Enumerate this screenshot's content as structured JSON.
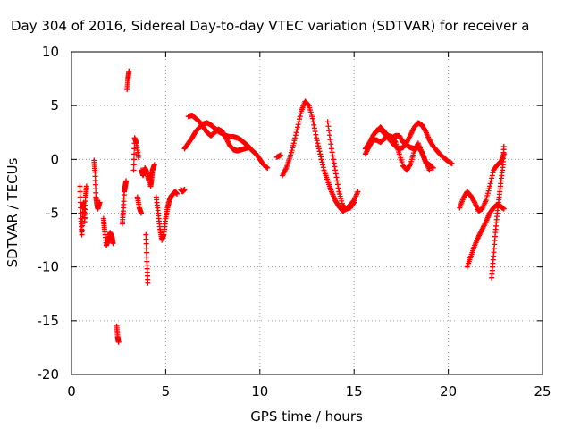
{
  "colors": {
    "series": "#ff0000",
    "grid": "#a0a0a0",
    "axis": "#000000"
  },
  "chart_data": {
    "type": "scatter",
    "title": "Day 304 of 2016, Sidereal Day-to-day VTEC variation (SDTVAR) for receiver a",
    "xlabel": "GPS time / hours",
    "ylabel": "SDTVAR / TECUs",
    "xlim": [
      0,
      25
    ],
    "ylim": [
      -20,
      10
    ],
    "grid": true,
    "marker": "plus",
    "x_ticks": [
      0,
      5,
      10,
      15,
      20,
      25
    ],
    "x_tick_labels": [
      "0",
      "5",
      "10",
      "15",
      "20",
      "25"
    ],
    "y_ticks": [
      -20,
      -15,
      -10,
      -5,
      0,
      5,
      10
    ],
    "y_tick_labels": [
      "-20",
      "-15",
      "-10",
      "-5",
      "0",
      "5",
      "10"
    ],
    "segments": [
      {
        "x": [
          0.45,
          0.5,
          0.55,
          0.6,
          0.65,
          0.7,
          0.75,
          0.8
        ],
        "y": [
          -2.5,
          -5.5,
          -7.0,
          -4.5,
          -4.0,
          -5.8,
          -3.5,
          -2.5
        ]
      },
      {
        "x": [
          1.2,
          1.25,
          1.3,
          1.35,
          1.4,
          1.5
        ],
        "y": [
          -0.1,
          -1.2,
          -3.5,
          -4.2,
          -4.6,
          -4.0
        ]
      },
      {
        "x": [
          1.7,
          1.75,
          1.85,
          1.95,
          2.05,
          2.15,
          2.2
        ],
        "y": [
          -5.5,
          -6.5,
          -8.0,
          -7.5,
          -6.8,
          -7.2,
          -7.8
        ]
      },
      {
        "x": [
          2.4,
          2.45,
          2.5
        ],
        "y": [
          -15.5,
          -16.5,
          -17.0
        ]
      },
      {
        "x": [
          2.7,
          2.75,
          2.8,
          2.85,
          2.9
        ],
        "y": [
          -6.0,
          -4.8,
          -3.0,
          -2.5,
          -2.0
        ]
      },
      {
        "x": [
          2.95,
          3.0,
          3.05
        ],
        "y": [
          6.5,
          7.5,
          8.2
        ]
      },
      {
        "x": [
          3.3,
          3.35,
          3.45,
          3.55
        ],
        "y": [
          -1.0,
          2.0,
          1.5,
          0.2
        ]
      },
      {
        "x": [
          3.5,
          3.6,
          3.7
        ],
        "y": [
          -3.5,
          -4.5,
          -5.0
        ]
      },
      {
        "x": [
          3.7,
          3.8,
          3.9,
          4.0,
          4.1,
          4.2
        ],
        "y": [
          -1.0,
          -1.5,
          -0.8,
          -1.2,
          -2.0,
          -1.2
        ]
      },
      {
        "x": [
          3.95,
          4.0,
          4.05
        ],
        "y": [
          -7.0,
          -9.5,
          -11.5
        ]
      },
      {
        "x": [
          4.15,
          4.2,
          4.25,
          4.3,
          4.4
        ],
        "y": [
          -1.5,
          -2.5,
          -1.8,
          -1.0,
          -0.5
        ]
      },
      {
        "x": [
          4.5,
          4.6,
          4.7,
          4.8,
          4.9,
          5.0,
          5.1,
          5.2,
          5.3,
          5.4,
          5.5,
          5.6
        ],
        "y": [
          -3.5,
          -5.0,
          -6.5,
          -7.5,
          -7.0,
          -5.5,
          -4.5,
          -3.8,
          -3.4,
          -3.2,
          -3.0,
          -3.2
        ]
      },
      {
        "x": [
          5.8,
          5.9,
          6.0
        ],
        "y": [
          -2.8,
          -3.0,
          -2.8
        ]
      },
      {
        "x": [
          6.0,
          6.2,
          6.4,
          6.6,
          6.8,
          7.0,
          7.2,
          7.4,
          7.6,
          7.8,
          8.0,
          8.2,
          8.4,
          8.6,
          8.8,
          9.0,
          9.2,
          9.4,
          9.6,
          9.8,
          10.0,
          10.2,
          10.4
        ],
        "y": [
          1.0,
          1.5,
          2.0,
          2.6,
          3.0,
          3.3,
          3.4,
          3.2,
          2.9,
          2.6,
          2.4,
          2.2,
          2.1,
          2.1,
          2.0,
          1.8,
          1.5,
          1.2,
          0.8,
          0.5,
          0.0,
          -0.5,
          -0.8
        ]
      },
      {
        "x": [
          6.2,
          6.4,
          6.6,
          6.8,
          7.0,
          7.2,
          7.4,
          7.6,
          7.8,
          8.0,
          8.2,
          8.4,
          8.6,
          8.8,
          9.0,
          9.2,
          9.4
        ],
        "y": [
          4.0,
          4.1,
          3.8,
          3.5,
          3.0,
          2.5,
          2.2,
          2.5,
          2.8,
          2.6,
          2.0,
          1.3,
          0.9,
          0.8,
          0.9,
          1.0,
          1.1
        ]
      },
      {
        "x": [
          10.9,
          11.1
        ],
        "y": [
          0.2,
          0.4
        ]
      },
      {
        "x": [
          11.2,
          11.4,
          11.6,
          11.8,
          12.0,
          12.2,
          12.4,
          12.6,
          12.8,
          13.0,
          13.2,
          13.4,
          13.6,
          13.8,
          14.0,
          14.2,
          14.4,
          14.6,
          14.8,
          15.0,
          15.2
        ],
        "y": [
          -1.5,
          -0.8,
          0.2,
          1.5,
          3.0,
          4.5,
          5.4,
          5.0,
          3.8,
          2.0,
          0.5,
          -1.0,
          -2.0,
          -3.0,
          -3.8,
          -4.4,
          -4.8,
          -4.6,
          -4.2,
          -3.8,
          -3.0
        ]
      },
      {
        "x": [
          13.6,
          13.8,
          14.0,
          14.2,
          14.4,
          14.6,
          14.8,
          15.0
        ],
        "y": [
          3.5,
          1.0,
          -1.0,
          -3.0,
          -4.3,
          -4.6,
          -4.5,
          -4.0
        ]
      },
      {
        "x": [
          15.6,
          15.8,
          16.0,
          16.2,
          16.4,
          16.6,
          16.8,
          17.0,
          17.2,
          17.4,
          17.6,
          17.8,
          18.0,
          18.2,
          18.4,
          18.6,
          18.8,
          19.0,
          19.2,
          19.4,
          19.6,
          19.8,
          20.0,
          20.2
        ],
        "y": [
          1.0,
          1.5,
          2.2,
          2.7,
          2.8,
          2.4,
          2.0,
          1.6,
          1.2,
          1.0,
          1.1,
          1.6,
          2.3,
          3.0,
          3.4,
          3.2,
          2.6,
          1.8,
          1.2,
          0.8,
          0.4,
          0.1,
          -0.2,
          -0.4
        ]
      },
      {
        "x": [
          15.6,
          15.8,
          16.0,
          16.2,
          16.4,
          16.6,
          16.8,
          17.0,
          17.2,
          17.4,
          17.6,
          17.8,
          18.0,
          18.2,
          18.4,
          18.6,
          18.8,
          19.0,
          19.2
        ],
        "y": [
          0.5,
          1.2,
          1.8,
          1.8,
          1.6,
          1.9,
          2.2,
          2.1,
          1.6,
          0.5,
          -0.6,
          -1.0,
          -0.4,
          0.8,
          1.5,
          0.6,
          -0.3,
          -0.5,
          -0.8
        ]
      },
      {
        "x": [
          16.2,
          16.4,
          16.6,
          16.8,
          17.0,
          17.2,
          17.4,
          17.6,
          17.8,
          18.0,
          18.2,
          18.4,
          18.6,
          18.8,
          19.0
        ],
        "y": [
          2.6,
          3.0,
          2.6,
          2.2,
          2.0,
          2.2,
          2.2,
          1.6,
          1.3,
          1.1,
          1.0,
          1.1,
          0.7,
          -0.2,
          -1.0
        ]
      },
      {
        "x": [
          20.6,
          20.8,
          21.0,
          21.2,
          21.4,
          21.6,
          21.8,
          22.0,
          22.2,
          22.4,
          22.6,
          22.8,
          22.95
        ],
        "y": [
          -4.5,
          -3.6,
          -3.0,
          -3.4,
          -4.0,
          -4.8,
          -4.6,
          -3.8,
          -2.5,
          -1.0,
          -0.5,
          -0.2,
          0.5
        ]
      },
      {
        "x": [
          21.0,
          21.2,
          21.4,
          21.6,
          21.8,
          22.0,
          22.2,
          22.4,
          22.6,
          22.8,
          22.95
        ],
        "y": [
          -10.0,
          -9.0,
          -8.0,
          -7.2,
          -6.5,
          -5.8,
          -5.0,
          -4.5,
          -4.2,
          -4.4,
          -4.6
        ]
      },
      {
        "x": [
          22.3,
          22.4,
          22.5,
          22.6,
          22.7,
          22.8,
          22.9,
          22.95
        ],
        "y": [
          -11.0,
          -9.0,
          -6.8,
          -5.0,
          -3.5,
          -2.0,
          -0.5,
          1.2
        ]
      }
    ]
  }
}
